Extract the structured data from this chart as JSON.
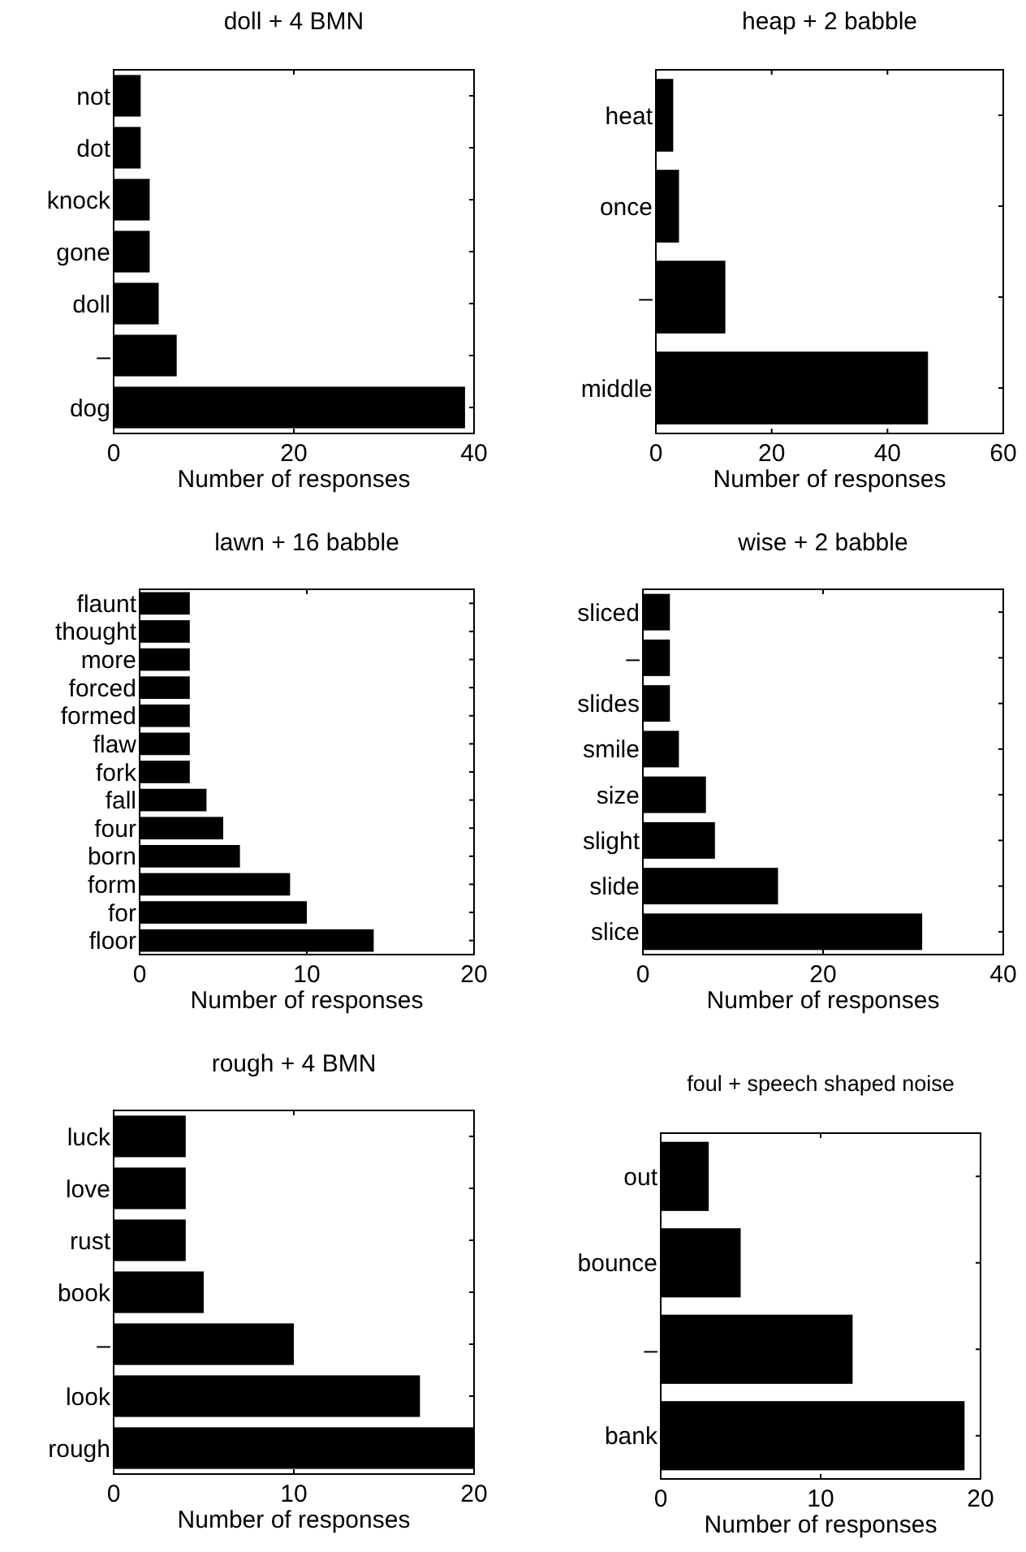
{
  "chart_data": [
    {
      "type": "bar",
      "orientation": "horizontal",
      "title": "doll + 4 BMN",
      "xlabel": "Number of responses",
      "categories": [
        "not",
        "dot",
        "knock",
        "gone",
        "doll",
        "–",
        "dog"
      ],
      "values": [
        3,
        3,
        4,
        4,
        5,
        7,
        39
      ],
      "color": "#000000",
      "xlim": [
        0,
        40
      ],
      "xticks": [
        0,
        20,
        40
      ]
    },
    {
      "type": "bar",
      "orientation": "horizontal",
      "title": "heap + 2 babble",
      "xlabel": "Number of responses",
      "categories": [
        "heat",
        "once",
        "–",
        "middle"
      ],
      "values": [
        3,
        4,
        12,
        47
      ],
      "color": "#000000",
      "xlim": [
        0,
        60
      ],
      "xticks": [
        0,
        20,
        40,
        60
      ]
    },
    {
      "type": "bar",
      "orientation": "horizontal",
      "title": "lawn + 16 babble",
      "xlabel": "Number of responses",
      "categories": [
        "flaunt",
        "thought",
        "more",
        "forced",
        "formed",
        "flaw",
        "fork",
        "fall",
        "four",
        "born",
        "form",
        "for",
        "floor"
      ],
      "values": [
        3,
        3,
        3,
        3,
        3,
        3,
        3,
        4,
        5,
        6,
        9,
        10,
        14
      ],
      "color": "#000000",
      "xlim": [
        0,
        20
      ],
      "xticks": [
        0,
        10,
        20
      ]
    },
    {
      "type": "bar",
      "orientation": "horizontal",
      "title": "wise + 2 babble",
      "xlabel": "Number of responses",
      "categories": [
        "sliced",
        "–",
        "slides",
        "smile",
        "size",
        "slight",
        "slide",
        "slice"
      ],
      "values": [
        3,
        3,
        3,
        4,
        7,
        8,
        15,
        31
      ],
      "color": "#000000",
      "xlim": [
        0,
        40
      ],
      "xticks": [
        0,
        20,
        40
      ]
    },
    {
      "type": "bar",
      "orientation": "horizontal",
      "title": "rough + 4 BMN",
      "xlabel": "Number of responses",
      "categories": [
        "luck",
        "love",
        "rust",
        "book",
        "–",
        "look",
        "rough"
      ],
      "values": [
        4,
        4,
        4,
        5,
        10,
        17,
        20
      ],
      "color": "#000000",
      "xlim": [
        0,
        20
      ],
      "xticks": [
        0,
        10,
        20
      ]
    },
    {
      "type": "bar",
      "orientation": "horizontal",
      "title": "foul + speech shaped noise",
      "xlabel": "Number of responses",
      "categories": [
        "out",
        "bounce",
        "–",
        "bank"
      ],
      "values": [
        3,
        5,
        12,
        19
      ],
      "color": "#000000",
      "xlim": [
        0,
        20
      ],
      "xticks": [
        0,
        10,
        20
      ]
    }
  ]
}
